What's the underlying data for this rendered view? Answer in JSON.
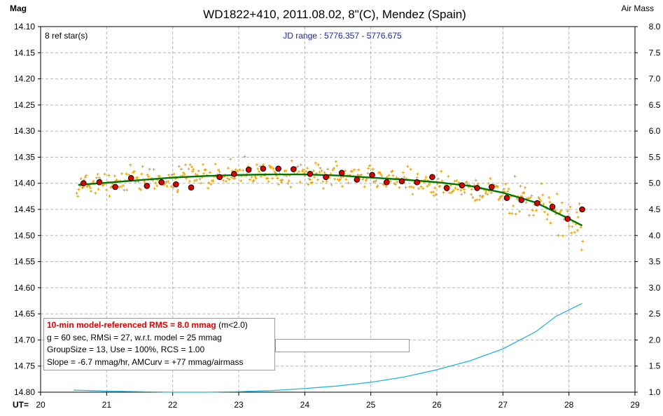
{
  "title": "WD1822+410, 2011.08.02, 8\"(C), Mendez (Spain)",
  "left_axis_label": "Mag",
  "right_axis_label": "Air Mass",
  "x_axis_label": "UT=",
  "ref_stars": "8 ref star(s)",
  "jd_range": "JD range : 5776.357 - 5776.675",
  "info": {
    "line1_bold": "10-min model-referenced RMS = 8.0 mmag",
    "line1_tail": " (m<2.0)",
    "line2": "g = 60 sec, RMSi = 27, w.r.t. model = 25 mmag",
    "line3": "GroupSize = 13, Use = 100%, RCS = 1.00",
    "line4": "Slope = -6.7 mmag/hr, AMCurv = +77 mmag/airmass"
  },
  "colors": {
    "raw_points": "#e8a000",
    "group_means": "#e00000",
    "model": "#007800",
    "airmass": "#20b8d8",
    "grid": "#b4b4b4",
    "title_blue": "#1c2aa0"
  },
  "chart_data": {
    "type": "scatter",
    "xlim": [
      20,
      29
    ],
    "ylim_left": [
      14.1,
      14.8
    ],
    "ylim_right": [
      1.0,
      8.0
    ],
    "left_axis_inverted": true,
    "grid": true,
    "x_ticks": [
      "20",
      "21",
      "22",
      "23",
      "24",
      "25",
      "26",
      "27",
      "28",
      "29"
    ],
    "y_ticks_left": [
      "14.10",
      "14.15",
      "14.20",
      "14.25",
      "14.30",
      "14.35",
      "14.40",
      "14.45",
      "14.50",
      "14.55",
      "14.60",
      "14.65",
      "14.70",
      "14.75",
      "14.80"
    ],
    "y_ticks_right": [
      "8.0",
      "7.5",
      "7.0",
      "6.5",
      "6.0",
      "5.5",
      "5.0",
      "4.5",
      "4.0",
      "3.5",
      "3.0",
      "2.5",
      "2.0",
      "1.5",
      "1.0"
    ],
    "series": [
      {
        "kind": "group_means",
        "x": [
          20.65,
          20.89,
          21.13,
          21.37,
          21.61,
          21.83,
          22.05,
          22.28,
          22.71,
          22.93,
          23.15,
          23.37,
          23.6,
          23.83,
          24.08,
          24.32,
          24.56,
          24.79,
          25.02,
          25.24,
          25.47,
          25.7,
          25.93,
          26.15,
          26.38,
          26.61,
          26.83,
          27.06,
          27.28,
          27.52,
          27.75,
          27.98,
          28.2
        ],
        "y": [
          14.4,
          14.398,
          14.407,
          14.39,
          14.405,
          14.398,
          14.402,
          14.408,
          14.388,
          14.382,
          14.374,
          14.372,
          14.372,
          14.373,
          14.382,
          14.388,
          14.38,
          14.393,
          14.384,
          14.398,
          14.396,
          14.398,
          14.388,
          14.409,
          14.404,
          14.409,
          14.407,
          14.428,
          14.432,
          14.438,
          14.445,
          14.468,
          14.45
        ]
      },
      {
        "kind": "model",
        "x": [
          20.57,
          21.0,
          21.5,
          22.0,
          22.5,
          23.0,
          23.5,
          24.0,
          24.5,
          25.0,
          25.5,
          26.0,
          26.5,
          27.0,
          27.5,
          28.0,
          28.2
        ],
        "y": [
          14.403,
          14.399,
          14.394,
          14.389,
          14.386,
          14.384,
          14.383,
          14.383,
          14.385,
          14.389,
          14.393,
          14.398,
          14.405,
          14.418,
          14.437,
          14.468,
          14.481
        ]
      },
      {
        "kind": "airmass",
        "x": [
          20.5,
          21.0,
          21.5,
          22.0,
          22.5,
          23.0,
          23.5,
          24.0,
          24.5,
          25.0,
          25.5,
          26.0,
          26.5,
          27.0,
          27.5,
          27.8,
          28.2
        ],
        "y": [
          1.04,
          1.02,
          1.01,
          1.0,
          1.0,
          1.01,
          1.03,
          1.07,
          1.12,
          1.19,
          1.29,
          1.43,
          1.6,
          1.83,
          2.16,
          2.45,
          2.7
        ]
      }
    ]
  }
}
